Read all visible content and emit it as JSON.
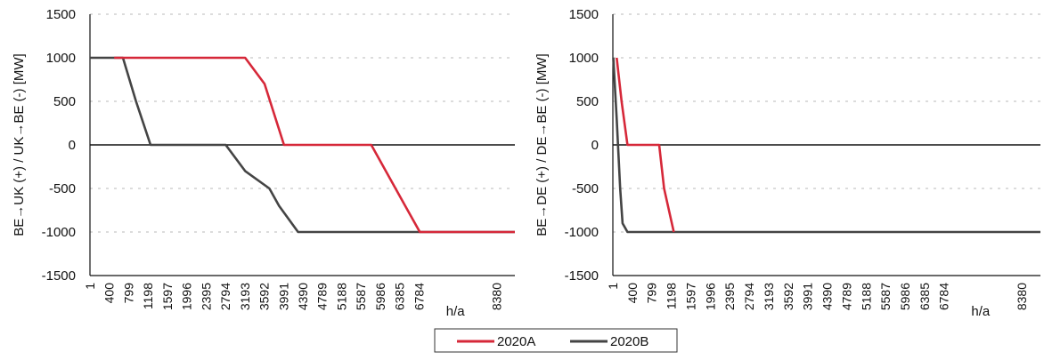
{
  "chart_data": [
    {
      "type": "line",
      "ylabel": "BE→UK (+) / UK→BE (-) [MW]",
      "xlabel": "h/a",
      "ylim": [
        -1500,
        1500
      ],
      "yticks": [
        1500,
        1000,
        500,
        0,
        -500,
        -1000,
        -1500
      ],
      "xlim": [
        1,
        8760
      ],
      "xticks": [
        "1",
        "400",
        "799",
        "1198",
        "1597",
        "1996",
        "2395",
        "2794",
        "3193",
        "3592",
        "3991",
        "4390",
        "4789",
        "5188",
        "5587",
        "5986",
        "6385",
        "6784",
        "8380"
      ],
      "grid": true,
      "series": [
        {
          "name": "2020A",
          "color": "#d62839",
          "x": [
            500,
            3200,
            3600,
            4000,
            5800,
            6100,
            6500,
            6800,
            8760
          ],
          "y": [
            1000,
            1000,
            700,
            0,
            0,
            -300,
            -700,
            -1000,
            -1000
          ]
        },
        {
          "name": "2020B",
          "color": "#444444",
          "x": [
            1,
            680,
            950,
            1250,
            2800,
            3200,
            3700,
            3900,
            4290,
            8760
          ],
          "y": [
            1000,
            1000,
            500,
            0,
            0,
            -300,
            -500,
            -700,
            -1000,
            -1000
          ]
        }
      ]
    },
    {
      "type": "line",
      "ylabel": "BE→DE (+) / DE→BE (-) [MW]",
      "xlabel": "h/a",
      "ylim": [
        -1500,
        1500
      ],
      "yticks": [
        1500,
        1000,
        500,
        0,
        -500,
        -1000,
        -1500
      ],
      "xlim": [
        1,
        8760
      ],
      "xticks": [
        "1",
        "400",
        "799",
        "1198",
        "1597",
        "1996",
        "2395",
        "2794",
        "3193",
        "3592",
        "3991",
        "4390",
        "4789",
        "5188",
        "5587",
        "5986",
        "6385",
        "6784",
        "8380"
      ],
      "grid": true,
      "series": [
        {
          "name": "2020A",
          "color": "#d62839",
          "x": [
            80,
            180,
            300,
            950,
            1050,
            1250
          ],
          "y": [
            1000,
            500,
            0,
            0,
            -500,
            -1000
          ]
        },
        {
          "name": "2020B",
          "color": "#444444",
          "x": [
            10,
            80,
            150,
            200,
            300,
            8760
          ],
          "y": [
            1000,
            300,
            -500,
            -900,
            -1000,
            -1000
          ]
        }
      ]
    }
  ],
  "legend": {
    "placement": "bottom-center",
    "items": [
      {
        "label": "2020A",
        "color": "#d62839"
      },
      {
        "label": "2020B",
        "color": "#444444"
      }
    ]
  }
}
